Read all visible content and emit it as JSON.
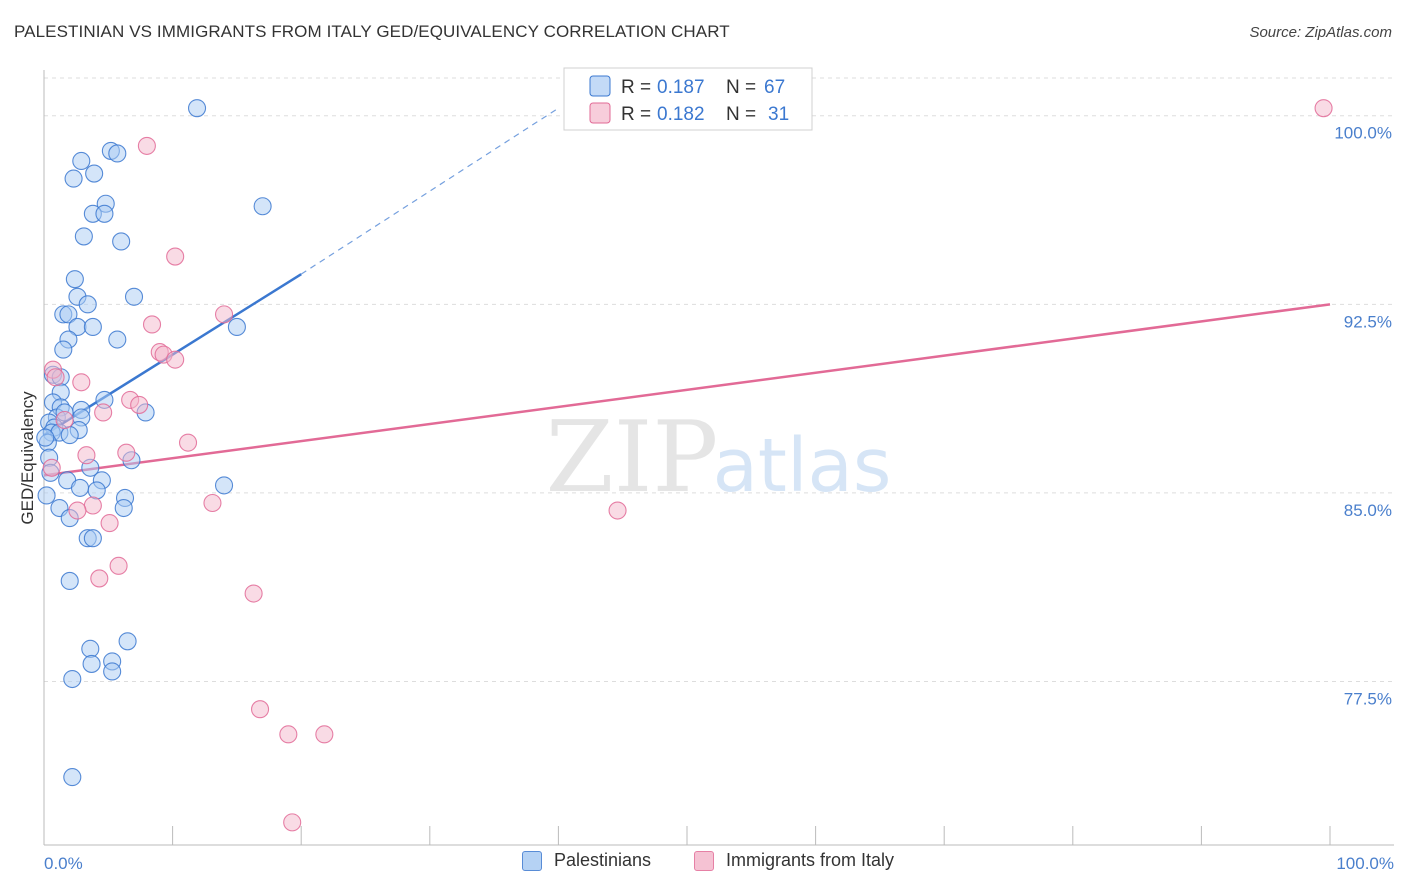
{
  "title": "PALESTINIAN VS IMMIGRANTS FROM ITALY GED/EQUIVALENCY CORRELATION CHART",
  "source": "Source: ZipAtlas.com",
  "watermark": {
    "zip": "ZIP",
    "atlas": "atlas"
  },
  "colors": {
    "blue": "#3b78d0",
    "blue_fill": "#a9cbf3",
    "pink": "#e26a96",
    "pink_fill": "#f4b8cc",
    "axis_text": "#4a7fcc",
    "grid": "#dddddd"
  },
  "legend": [
    {
      "series": "blue",
      "r_label": "R =",
      "r_value": "0.187",
      "n_label": "N =",
      "n_value": "67"
    },
    {
      "series": "pink",
      "r_label": "R =",
      "r_value": "0.182",
      "n_label": "N =",
      "n_value": "31"
    }
  ],
  "bottom_legend": [
    {
      "series": "blue",
      "label": "Palestinians"
    },
    {
      "series": "pink",
      "label": "Immigrants from Italy"
    }
  ],
  "chart_data": {
    "type": "scatter",
    "title": "PALESTINIAN VS IMMIGRANTS FROM ITALY GED/EQUIVALENCY CORRELATION CHART",
    "xlabel": "",
    "ylabel": "GED/Equivalency",
    "xlim": [
      0,
      100
    ],
    "ylim": [
      71.0,
      101.5
    ],
    "x_tick_labels": [
      {
        "value": 0,
        "label": "0.0%"
      },
      {
        "value": 100,
        "label": "100.0%"
      }
    ],
    "x_minor_ticks": [
      10,
      20,
      30,
      40,
      50,
      60,
      70,
      80,
      90,
      100
    ],
    "y_ticks": [
      {
        "value": 100.0,
        "label": "100.0%"
      },
      {
        "value": 92.5,
        "label": "92.5%"
      },
      {
        "value": 85.0,
        "label": "85.0%"
      },
      {
        "value": 77.5,
        "label": "77.5%"
      }
    ],
    "series": [
      {
        "name": "Palestinians",
        "color_key": "blue",
        "R": 0.187,
        "N": 67,
        "trend": {
          "x": [
            0.0,
            20.0
          ],
          "y": [
            87.3,
            93.7
          ]
        },
        "trend_ext": {
          "x": [
            20.0,
            40.0
          ],
          "y": [
            93.7,
            100.3
          ]
        },
        "points": [
          [
            11.9,
            100.3
          ],
          [
            5.2,
            98.6
          ],
          [
            5.7,
            98.5
          ],
          [
            2.9,
            98.2
          ],
          [
            3.9,
            97.7
          ],
          [
            2.3,
            97.5
          ],
          [
            17.0,
            96.4
          ],
          [
            4.8,
            96.5
          ],
          [
            3.8,
            96.1
          ],
          [
            4.7,
            96.1
          ],
          [
            3.1,
            95.2
          ],
          [
            6.0,
            95.0
          ],
          [
            2.4,
            93.5
          ],
          [
            7.0,
            92.8
          ],
          [
            2.6,
            92.8
          ],
          [
            3.4,
            92.5
          ],
          [
            1.5,
            92.1
          ],
          [
            1.9,
            92.1
          ],
          [
            2.6,
            91.6
          ],
          [
            3.8,
            91.6
          ],
          [
            15.0,
            91.6
          ],
          [
            1.9,
            91.1
          ],
          [
            5.7,
            91.1
          ],
          [
            1.5,
            90.7
          ],
          [
            0.7,
            89.7
          ],
          [
            1.3,
            89.6
          ],
          [
            1.3,
            89.0
          ],
          [
            4.7,
            88.7
          ],
          [
            0.7,
            88.6
          ],
          [
            1.3,
            88.4
          ],
          [
            2.9,
            88.3
          ],
          [
            7.9,
            88.2
          ],
          [
            1.0,
            88.0
          ],
          [
            2.9,
            88.0
          ],
          [
            0.4,
            87.8
          ],
          [
            0.8,
            87.6
          ],
          [
            0.6,
            87.4
          ],
          [
            2.7,
            87.5
          ],
          [
            1.2,
            87.4
          ],
          [
            2.0,
            87.3
          ],
          [
            0.3,
            87.0
          ],
          [
            0.4,
            86.4
          ],
          [
            6.8,
            86.3
          ],
          [
            3.6,
            86.0
          ],
          [
            4.5,
            85.5
          ],
          [
            1.8,
            85.5
          ],
          [
            14.0,
            85.3
          ],
          [
            2.8,
            85.2
          ],
          [
            4.1,
            85.1
          ],
          [
            0.2,
            84.9
          ],
          [
            6.3,
            84.8
          ],
          [
            1.2,
            84.4
          ],
          [
            6.2,
            84.4
          ],
          [
            2.0,
            84.0
          ],
          [
            3.4,
            83.2
          ],
          [
            3.8,
            83.2
          ],
          [
            2.0,
            81.5
          ],
          [
            6.5,
            79.1
          ],
          [
            3.6,
            78.8
          ],
          [
            5.3,
            78.3
          ],
          [
            3.7,
            78.2
          ],
          [
            5.3,
            77.9
          ],
          [
            2.2,
            77.6
          ],
          [
            2.2,
            73.7
          ],
          [
            0.1,
            87.2
          ],
          [
            1.6,
            88.2
          ],
          [
            0.5,
            85.8
          ]
        ]
      },
      {
        "name": "Immigrants from Italy",
        "color_key": "pink",
        "R": 0.182,
        "N": 31,
        "trend": {
          "x": [
            0.0,
            100.0
          ],
          "y": [
            85.7,
            92.5
          ]
        },
        "points": [
          [
            99.5,
            100.3
          ],
          [
            8.0,
            98.8
          ],
          [
            10.2,
            94.4
          ],
          [
            14.0,
            92.1
          ],
          [
            8.4,
            91.7
          ],
          [
            9.0,
            90.6
          ],
          [
            9.3,
            90.5
          ],
          [
            10.2,
            90.3
          ],
          [
            0.7,
            89.9
          ],
          [
            0.9,
            89.6
          ],
          [
            2.9,
            89.4
          ],
          [
            6.7,
            88.7
          ],
          [
            7.4,
            88.5
          ],
          [
            4.6,
            88.2
          ],
          [
            1.6,
            87.9
          ],
          [
            11.2,
            87.0
          ],
          [
            3.3,
            86.5
          ],
          [
            6.4,
            86.6
          ],
          [
            0.6,
            86.0
          ],
          [
            13.1,
            84.6
          ],
          [
            3.8,
            84.5
          ],
          [
            2.6,
            84.3
          ],
          [
            5.1,
            83.8
          ],
          [
            44.6,
            84.3
          ],
          [
            5.8,
            82.1
          ],
          [
            4.3,
            81.6
          ],
          [
            16.3,
            81.0
          ],
          [
            16.8,
            76.4
          ],
          [
            19.0,
            75.4
          ],
          [
            21.8,
            75.4
          ],
          [
            19.3,
            71.9
          ]
        ]
      }
    ]
  }
}
